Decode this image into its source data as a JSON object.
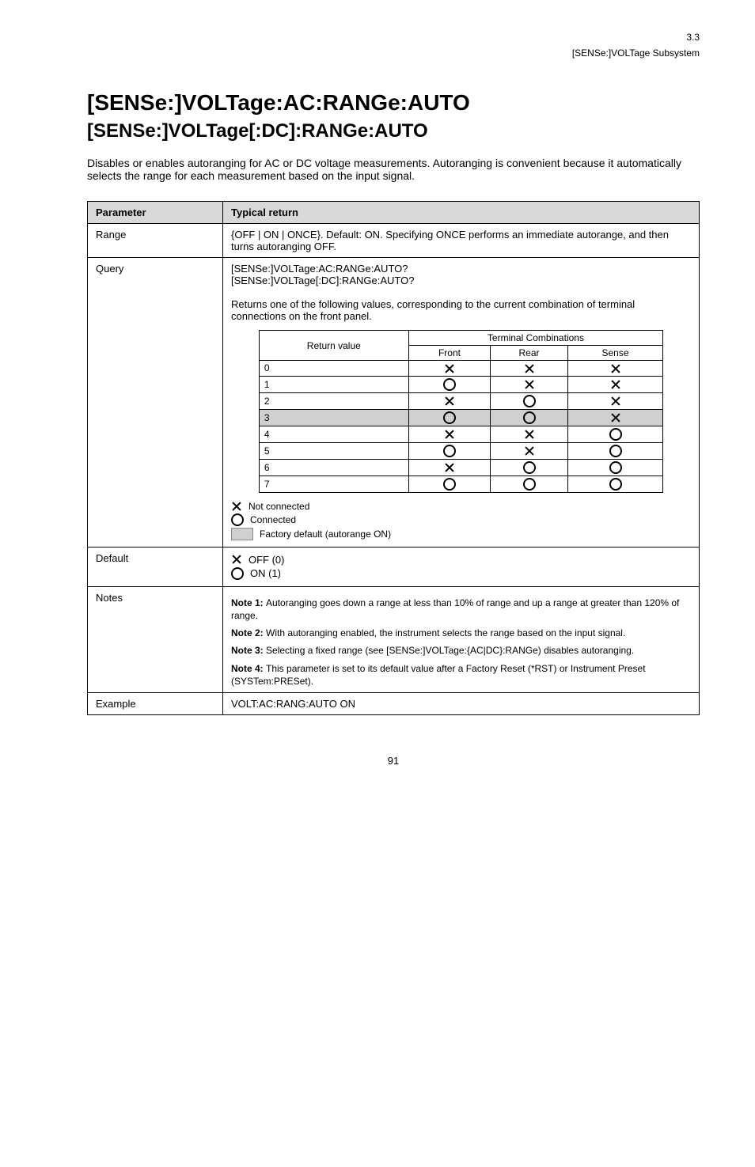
{
  "page_header": {
    "section_number": "3.3",
    "section_title": "[SENSe:]VOLTage Subsystem"
  },
  "title_block": {
    "cmd": "[SENSe:]VOLTage:AC:RANGe:AUTO",
    "sub": "[SENSe:]VOLTage[:DC]:RANGe:AUTO"
  },
  "intro_text": "Disables or enables autoranging for AC or DC voltage measurements. Autoranging is convenient because it automatically selects the range for each measurement based on the input signal.",
  "spec_table": {
    "header_left": "Parameter",
    "header_right": "Typical return",
    "rows": [
      {
        "label": "Range",
        "content": "{OFF | ON | ONCE}. Default: ON. Specifying ONCE performs an immediate autorange, and then turns autoranging OFF."
      },
      {
        "label": "Query",
        "content_intro": "[SENSe:]VOLTage:AC:RANGe:AUTO?\n[SENSe:]VOLTage[:DC]:RANGe:AUTO?\n\nReturns one of the following values, corresponding to the current combination of terminal connections on the front panel.",
        "combo_table": {
          "group_header": "Terminal Combinations",
          "cols": [
            "Front",
            "Rear",
            "Sense"
          ],
          "rows": [
            {
              "value": "0",
              "cells": [
                "x",
                "x",
                "x"
              ],
              "shaded": false
            },
            {
              "value": "1",
              "cells": [
                "o",
                "x",
                "x"
              ],
              "shaded": false
            },
            {
              "value": "2",
              "cells": [
                "x",
                "o",
                "x"
              ],
              "shaded": false
            },
            {
              "value": "3",
              "cells": [
                "o",
                "o",
                "x"
              ],
              "shaded": true
            },
            {
              "value": "4",
              "cells": [
                "x",
                "x",
                "o"
              ],
              "shaded": false
            },
            {
              "value": "5",
              "cells": [
                "o",
                "x",
                "o"
              ],
              "shaded": false
            },
            {
              "value": "6",
              "cells": [
                "x",
                "o",
                "o"
              ],
              "shaded": false
            },
            {
              "value": "7",
              "cells": [
                "o",
                "o",
                "o"
              ],
              "shaded": false
            }
          ],
          "row_label_header": "Return value"
        },
        "legend": {
          "x_text": "Not connected",
          "o_text": "Connected",
          "swatch_text": "Factory default (autorange ON)"
        }
      },
      {
        "label": "Default",
        "legend": {
          "x_text": "OFF (0)",
          "o_text": "ON (1)"
        }
      },
      {
        "label": "Notes",
        "notes": [
          {
            "title": "Note 1:",
            "body": "Autoranging goes down a range at less than 10% of range and up a range at greater than 120% of range."
          },
          {
            "title": "Note 2:",
            "body": "With autoranging enabled, the instrument selects the range based on the input signal."
          },
          {
            "title": "Note 3:",
            "body": "Selecting a fixed range (see [SENSe:]VOLTage:{AC|DC}:RANGe) disables autoranging."
          },
          {
            "title": "Note 4:",
            "body": "This parameter is set to its default value after a Factory Reset (*RST) or Instrument Preset (SYSTem:PRESet)."
          }
        ]
      },
      {
        "label": "Example",
        "content": "VOLT:AC:RANG:AUTO ON"
      }
    ]
  },
  "footer_page_number": "91",
  "colors": {
    "header_bg": "#d9d9d9",
    "shaded_bg": "#d0d0d0",
    "border": "#000000",
    "text": "#000000"
  }
}
